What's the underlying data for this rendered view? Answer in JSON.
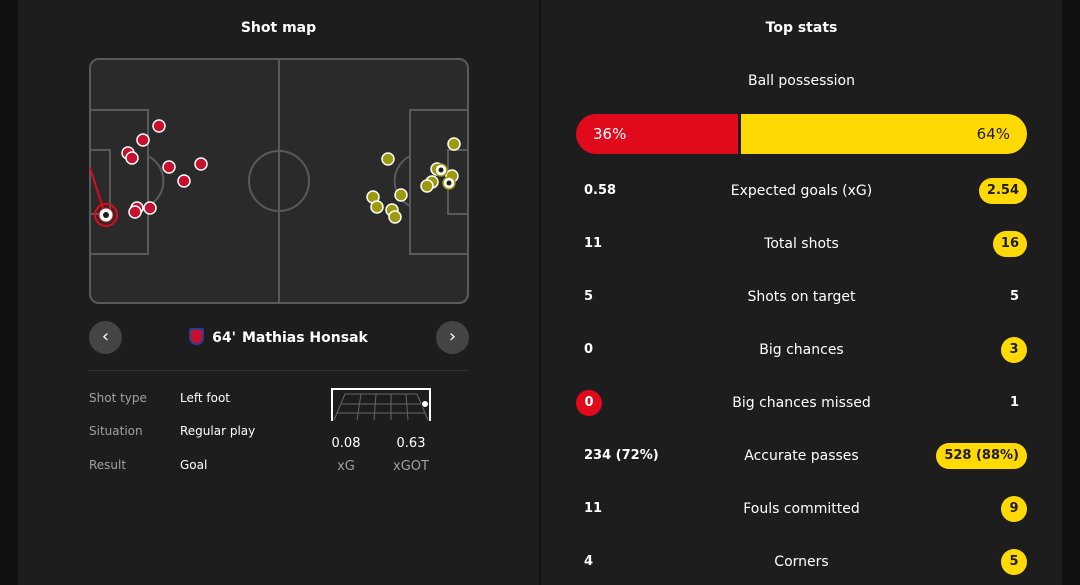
{
  "colors": {
    "home": "#e1091c",
    "away": "#ffd903",
    "panel": "#1d1d1d",
    "pitch_line": "#5a5a5a"
  },
  "shot_map": {
    "title": "Shot map",
    "selected_shot": {
      "minute": "64'",
      "player": "Mathias Honsak",
      "team_crest": "team-crest-icon",
      "shot_type_label": "Shot type",
      "shot_type": "Left foot",
      "situation_label": "Situation",
      "situation": "Regular play",
      "result_label": "Result",
      "result": "Goal",
      "xg": "0.08",
      "xg_label": "xG",
      "xgot": "0.63",
      "xgot_label": "xGOT"
    },
    "prev_icon": "chevron-left-icon",
    "next_icon": "chevron-right-icon"
  },
  "top_stats": {
    "title": "Top stats",
    "possession": {
      "label": "Ball possession",
      "home": "36%",
      "away": "64%",
      "home_fraction": 0.36
    },
    "rows": [
      {
        "name": "Expected goals (xG)",
        "home": "0.58",
        "away": "2.54",
        "highlight": "away"
      },
      {
        "name": "Total shots",
        "home": "11",
        "away": "16",
        "highlight": "away"
      },
      {
        "name": "Shots on target",
        "home": "5",
        "away": "5",
        "highlight": "none"
      },
      {
        "name": "Big chances",
        "home": "0",
        "away": "3",
        "highlight": "away"
      },
      {
        "name": "Big chances missed",
        "home": "0",
        "away": "1",
        "highlight": "home"
      },
      {
        "name": "Accurate passes",
        "home": "234 (72%)",
        "away": "528 (88%)",
        "highlight": "away"
      },
      {
        "name": "Fouls committed",
        "home": "11",
        "away": "9",
        "highlight": "away"
      },
      {
        "name": "Corners",
        "home": "4",
        "away": "5",
        "highlight": "away"
      }
    ]
  }
}
